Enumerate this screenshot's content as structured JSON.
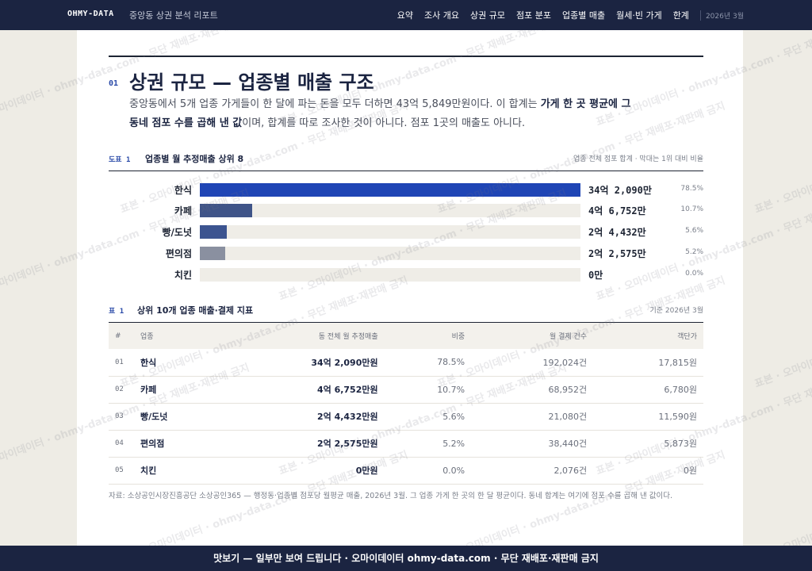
{
  "nav": {
    "brand": "OHMY-DATA",
    "subtitle": "중앙동 상권 분석 리포트",
    "links": [
      "요약",
      "조사 개요",
      "상권 규모",
      "점포 분포",
      "업종별 매출",
      "월세·빈 가게",
      "한계"
    ],
    "date": "2026년 3월"
  },
  "section": {
    "number": "01",
    "title": "상권 규모 — 업종별 매출 구조",
    "lead": [
      {
        "text": "중앙동에서 5개 업종 가게들이 한 달에 파는 돈을 모두 더하면 43억 5,849만원이다. 이 합계는 "
      },
      {
        "text": "가게 한 곳 평균에 그 동네 점포 수를 곱해 낸 값",
        "bold": true
      },
      {
        "text": "이며, 합계를 따로 조사한 것이 아니다. 점포 1곳의 매출도 아니다."
      }
    ]
  },
  "chart_data": {
    "type": "bar",
    "orientation": "horizontal",
    "label": "도표 1",
    "title": "업종별 월 추정매출 상위 8",
    "note": "업종 전체 점포 합계 · 막대는 1위 대비 비율",
    "categories": [
      "한식",
      "카페",
      "빵/도넛",
      "편의점",
      "치킨"
    ],
    "values": [
      342090,
      46752,
      24432,
      22575,
      0
    ],
    "value_labels": [
      "34억 2,090만",
      "4억 6,752만",
      "2억 4,432만",
      "2억 2,575만",
      "0만"
    ],
    "colors": [
      "#1f45b5",
      "#3f5488",
      "#3c5490",
      "#8a90a0",
      "#8a93a6"
    ],
    "shares": [
      78.5,
      10.7,
      5.6,
      5.2,
      0
    ],
    "share_labels": [
      "78.5%",
      "10.7%",
      "5.6%",
      "5.2%",
      "0.0%"
    ]
  },
  "table": {
    "label": "표 1",
    "title": "상위 10개 업종 매출·결제 지표",
    "note": "기준 2026년 3월",
    "columns": [
      "#",
      "업종",
      "동 전체 월 추정매출",
      "비중",
      "월 결제 건수",
      "객단가"
    ],
    "rows": [
      [
        "01",
        "한식",
        "34억 2,090만원",
        "78.5%",
        "192,024건",
        "17,815원"
      ],
      [
        "02",
        "카페",
        "4억 6,752만원",
        "10.7%",
        "68,952건",
        "6,780원"
      ],
      [
        "03",
        "빵/도넛",
        "2억 4,432만원",
        "5.6%",
        "21,080건",
        "11,590원"
      ],
      [
        "04",
        "편의점",
        "2억 2,575만원",
        "5.2%",
        "38,440건",
        "5,873원"
      ],
      [
        "05",
        "치킨",
        "0만원",
        "0.0%",
        "2,076건",
        "0원"
      ]
    ]
  },
  "source": "자료: 소상공인시장진흥공단 소상공인365 — 행정동·업종별 점포당 월평균 매출, 2026년 3월. 그 업종 가게 한 곳의 한 달 평균이다. 동네 합계는 여기에 점포 수를 곱해 낸 값이다.",
  "footer": "맛보기 — 일부만 보여 드립니다 · 오마이데이터 ohmy-data.com · 무단 재배포·재판매 금지",
  "watermark": "표본 · 오마이데이터 · ohmy-data.com · 무단 재배포·재판매 금지"
}
